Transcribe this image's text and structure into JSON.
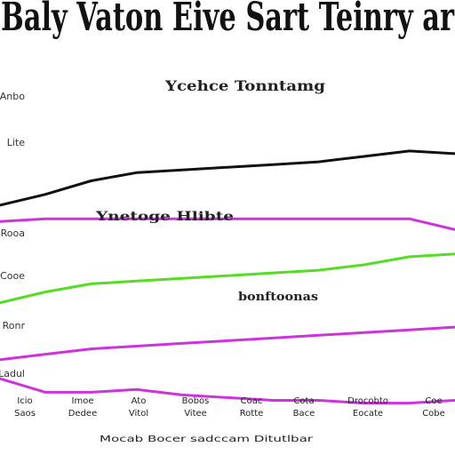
{
  "chart_data": {
    "type": "line",
    "title": "Baly Vaton Eive Sart Teinry ar",
    "annotations": [
      {
        "text": "Ycehce Tonntamg"
      },
      {
        "text": "Ynetoge Hlibte"
      },
      {
        "text": "bonftoonas"
      }
    ],
    "y_tick_labels": [
      "Anbo",
      "Lite",
      "Rooa",
      "Cooe",
      "Ronr",
      "Ladul"
    ],
    "x_tick_labels": [
      [
        "Icio",
        "Saos"
      ],
      [
        "Imoe",
        "Dedee"
      ],
      [
        "Ato",
        "Vitol"
      ],
      [
        "Bobos",
        "Vitee"
      ],
      [
        "Coac",
        "Rotte"
      ],
      [
        "Cota",
        "Bace"
      ],
      [
        "Drocobto",
        "Eocate"
      ],
      [
        "Coe",
        "Cobe"
      ]
    ],
    "xlabel": "Mocab Bocer sadccam Ditutlbar",
    "x": [
      0,
      1,
      2,
      3,
      4,
      5,
      6,
      7,
      8,
      9,
      10
    ],
    "ylim": [
      0,
      100
    ],
    "series": [
      {
        "color": "#111111",
        "values": [
          62,
          66,
          71,
          74,
          75,
          76,
          77,
          78,
          80,
          82,
          81
        ]
      },
      {
        "color": "#cc33dd",
        "values": [
          56,
          57,
          57,
          57,
          57,
          57,
          57,
          57,
          57,
          57,
          53
        ]
      },
      {
        "color": "#55dd22",
        "values": [
          26,
          30,
          33,
          34,
          35,
          36,
          37,
          38,
          40,
          43,
          44
        ]
      },
      {
        "color": "#cc33dd",
        "values": [
          5,
          7,
          9,
          10,
          11,
          12,
          13,
          14,
          15,
          16,
          17
        ]
      },
      {
        "color": "#cc33dd",
        "values": [
          -2,
          -7,
          -7,
          -6,
          -8,
          -9,
          -10,
          -10,
          -11,
          -11,
          -10
        ]
      }
    ]
  }
}
